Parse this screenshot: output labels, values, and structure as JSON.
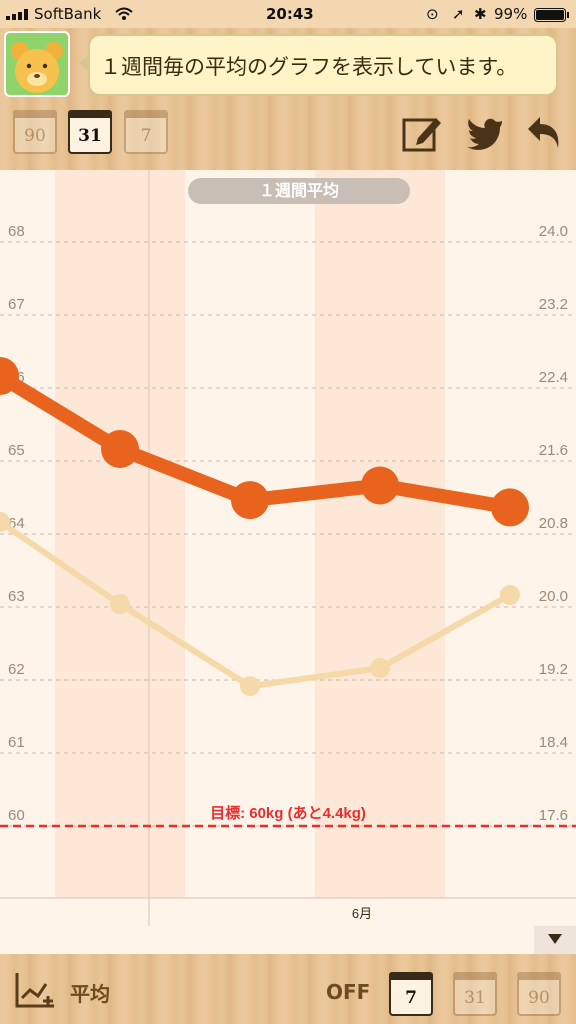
{
  "status_bar": {
    "carrier": "SoftBank",
    "time": "20:43",
    "battery": "99%"
  },
  "header": {
    "avatar": "bear-avatar",
    "message": "１週間毎の平均のグラフを表示しています。",
    "range_buttons": [
      {
        "label": "90",
        "state": "faded"
      },
      {
        "label": "31",
        "state": "active"
      },
      {
        "label": "7",
        "state": "faded"
      }
    ],
    "tools": [
      "edit-icon",
      "twitter-icon",
      "back-icon"
    ]
  },
  "chart_data": {
    "type": "line",
    "title": "１週間平均",
    "x_label": "6月",
    "y_left_ticks": [
      "68",
      "67",
      "66",
      "65",
      "64",
      "63",
      "62",
      "61",
      "60"
    ],
    "y_right_ticks": [
      "24.0",
      "23.2",
      "22.4",
      "21.6",
      "20.8",
      "20.0",
      "19.2",
      "18.4",
      "17.6"
    ],
    "y_left_range": [
      60,
      68
    ],
    "y_right_range": [
      17.6,
      24.0
    ],
    "series": [
      {
        "color": "#e7631e",
        "values": [
          66.0,
          65.0,
          64.3,
          64.5,
          64.2
        ],
        "axis": "left"
      },
      {
        "color": "#f5d9a8",
        "values": [
          20.8,
          19.9,
          19.0,
          19.2,
          20.0
        ],
        "axis": "right"
      }
    ],
    "goal_label": "目標: 60kg (あと4.4kg)",
    "goal_value": 60,
    "goal_color": "#e82e2e"
  },
  "bottom_bar": {
    "mode_label": "平均",
    "toggle_label": "OFF",
    "range_buttons": [
      {
        "label": "7",
        "state": "active"
      },
      {
        "label": "31",
        "state": "faded"
      },
      {
        "label": "90",
        "state": "faded"
      }
    ]
  }
}
